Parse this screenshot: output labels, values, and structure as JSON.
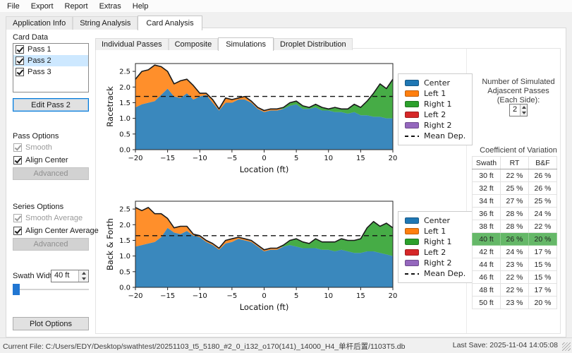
{
  "menu": {
    "items": [
      "File",
      "Export",
      "Report",
      "Extras",
      "Help"
    ]
  },
  "main_tabs": {
    "items": [
      "Application Info",
      "String Analysis",
      "Card Analysis"
    ],
    "active": "Card Analysis"
  },
  "analysis_tabs": {
    "items": [
      "Individual Passes",
      "Composite",
      "Simulations",
      "Droplet Distribution"
    ],
    "active": "Simulations"
  },
  "sidebar": {
    "card_data": {
      "label": "Card Data",
      "passes": [
        {
          "label": "Pass 1",
          "checked": true,
          "selected": false
        },
        {
          "label": "Pass 2",
          "checked": true,
          "selected": true
        },
        {
          "label": "Pass 3",
          "checked": true,
          "selected": false
        }
      ],
      "edit_button": "Edit Pass 2"
    },
    "pass_options": {
      "label": "Pass Options",
      "smooth": {
        "label": "Smooth",
        "checked": true,
        "enabled": false
      },
      "align_center": {
        "label": "Align Center",
        "checked": true,
        "enabled": true
      },
      "advanced": "Advanced"
    },
    "series_options": {
      "label": "Series Options",
      "smooth_average": {
        "label": "Smooth Average",
        "checked": true,
        "enabled": false
      },
      "align_center_average": {
        "label": "Align Center Average",
        "checked": true,
        "enabled": true
      },
      "advanced": "Advanced"
    },
    "swath_width": {
      "label": "Swath Width:",
      "value": "40 ft"
    },
    "plot_options_button": "Plot Options"
  },
  "simulation_panel": {
    "adjacent_passes_label": "Number of Simulated\nAdjascent Passes\n(Each Side):",
    "adjacent_passes_value": "2",
    "cov": {
      "title": "Coefficient of Variation",
      "headers": [
        "Swath",
        "RT",
        "B&F"
      ],
      "rows": [
        [
          "30 ft",
          "22 %",
          "26 %"
        ],
        [
          "32 ft",
          "25 %",
          "26 %"
        ],
        [
          "34 ft",
          "27 %",
          "25 %"
        ],
        [
          "36 ft",
          "28 %",
          "24 %"
        ],
        [
          "38 ft",
          "28 %",
          "22 %"
        ],
        [
          "40 ft",
          "26 %",
          "20 %"
        ],
        [
          "42 ft",
          "24 %",
          "17 %"
        ],
        [
          "44 ft",
          "23 %",
          "15 %"
        ],
        [
          "46 ft",
          "22 %",
          "15 %"
        ],
        [
          "48 ft",
          "22 %",
          "17 %"
        ],
        [
          "50 ft",
          "23 %",
          "20 %"
        ]
      ],
      "highlight_row": 5
    }
  },
  "status_bar": {
    "current_file": "Current File: C:/Users/EDY/Desktop/swathtest/20251103_t5_5180_#2_0_i132_o170(141)_14000_H4_单杆后置/1103T5.db",
    "last_save": "Last Save: 2025-11-04 14:05:08"
  },
  "colors": {
    "center": "#1f77b4",
    "left1": "#ff7f0e",
    "right1": "#2ca02c",
    "left2": "#d62728",
    "right2": "#9467bd",
    "accent": "#0078d7",
    "cov_highlight": "#65b868",
    "selection": "#cde8ff"
  },
  "chart_data": [
    {
      "type": "area",
      "stacked": true,
      "ylabel": "Racetrack",
      "xlabel": "Location (ft)",
      "xlim": [
        -20,
        20
      ],
      "ylim": [
        0,
        2.75
      ],
      "xticks": [
        -20,
        -15,
        -10,
        -5,
        0,
        5,
        10,
        15,
        20
      ],
      "yticks": [
        0,
        0.5,
        1,
        1.5,
        2,
        2.5
      ],
      "mean_dep": 1.7,
      "x": [
        -20,
        -19,
        -18,
        -17,
        -16,
        -15,
        -14,
        -13,
        -12,
        -11,
        -10,
        -9,
        -8,
        -7,
        -6,
        -5,
        -4,
        -3,
        -2,
        -1,
        0,
        1,
        2,
        3,
        4,
        5,
        6,
        7,
        8,
        9,
        10,
        11,
        12,
        13,
        14,
        15,
        16,
        17,
        18,
        19,
        20
      ],
      "series": [
        {
          "name": "Center",
          "color": "#1f77b4",
          "values": [
            1.35,
            1.45,
            1.5,
            1.55,
            1.75,
            1.95,
            1.7,
            1.65,
            1.8,
            1.6,
            1.7,
            1.75,
            1.5,
            1.25,
            1.5,
            1.5,
            1.6,
            1.6,
            1.5,
            1.3,
            1.2,
            1.25,
            1.25,
            1.3,
            1.4,
            1.45,
            1.3,
            1.3,
            1.35,
            1.25,
            1.25,
            1.2,
            1.2,
            1.15,
            1.2,
            1.1,
            1.1,
            1.05,
            1.05,
            1.0,
            1.0
          ]
        },
        {
          "name": "Left 1",
          "color": "#ff7f0e",
          "values": [
            0.9,
            1.05,
            1.05,
            1.15,
            0.9,
            0.55,
            0.4,
            0.55,
            0.45,
            0.45,
            0.1,
            0.05,
            0.1,
            0.05,
            0.15,
            0.1,
            0.05,
            0.1,
            0.05,
            0.05,
            0.05,
            0.05,
            0.05,
            0,
            0,
            0,
            0,
            0,
            0,
            0,
            0,
            0,
            0,
            0,
            0,
            0,
            0,
            0,
            0,
            0,
            0
          ]
        },
        {
          "name": "Right 1",
          "color": "#2ca02c",
          "values": [
            0,
            0,
            0,
            0,
            0,
            0,
            0,
            0,
            0,
            0,
            0,
            0,
            0,
            0,
            0,
            0,
            0,
            0,
            0,
            0,
            0,
            0,
            0,
            0.05,
            0.1,
            0.1,
            0.1,
            0.05,
            0.1,
            0.1,
            0.05,
            0.15,
            0.1,
            0.15,
            0.25,
            0.25,
            0.45,
            0.75,
            1.05,
            0.95,
            1.25
          ]
        }
      ],
      "legend": [
        {
          "label": "Center",
          "color": "#1f77b4"
        },
        {
          "label": "Left 1",
          "color": "#ff7f0e"
        },
        {
          "label": "Right 1",
          "color": "#2ca02c"
        },
        {
          "label": "Left 2",
          "color": "#d62728"
        },
        {
          "label": "Right 2",
          "color": "#9467bd"
        },
        {
          "label": "Mean Dep.",
          "dash": true
        }
      ]
    },
    {
      "type": "area",
      "stacked": true,
      "ylabel": "Back & Forth",
      "xlabel": "Location (ft)",
      "xlim": [
        -20,
        20
      ],
      "ylim": [
        0,
        2.75
      ],
      "xticks": [
        -20,
        -15,
        -10,
        -5,
        0,
        5,
        10,
        15,
        20
      ],
      "yticks": [
        0,
        0.5,
        1,
        1.5,
        2,
        2.5
      ],
      "mean_dep": 1.65,
      "x": [
        -20,
        -19,
        -18,
        -17,
        -16,
        -15,
        -14,
        -13,
        -12,
        -11,
        -10,
        -9,
        -8,
        -7,
        -6,
        -5,
        -4,
        -3,
        -2,
        -1,
        0,
        1,
        2,
        3,
        4,
        5,
        6,
        7,
        8,
        9,
        10,
        11,
        12,
        13,
        14,
        15,
        16,
        17,
        18,
        19,
        20
      ],
      "series": [
        {
          "name": "Center",
          "color": "#1f77b4",
          "values": [
            1.3,
            1.35,
            1.4,
            1.45,
            1.6,
            1.9,
            1.75,
            1.7,
            1.8,
            1.65,
            1.6,
            1.45,
            1.35,
            1.2,
            1.4,
            1.45,
            1.55,
            1.5,
            1.45,
            1.3,
            1.15,
            1.2,
            1.2,
            1.3,
            1.35,
            1.3,
            1.25,
            1.25,
            1.25,
            1.2,
            1.2,
            1.15,
            1.2,
            1.15,
            1.1,
            1.1,
            1.15,
            1.15,
            1.1,
            1.05,
            1.0
          ]
        },
        {
          "name": "Left 1",
          "color": "#ff7f0e",
          "values": [
            1.25,
            1.1,
            1.15,
            0.9,
            0.75,
            0.3,
            0.15,
            0.25,
            0.15,
            0.05,
            0.05,
            0.05,
            0.05,
            0.05,
            0.1,
            0.1,
            0.05,
            0.05,
            0.05,
            0.05,
            0.05,
            0.05,
            0.05,
            0,
            0,
            0,
            0,
            0,
            0,
            0,
            0,
            0,
            0,
            0,
            0,
            0,
            0,
            0,
            0,
            0,
            0
          ]
        },
        {
          "name": "Right 1",
          "color": "#2ca02c",
          "values": [
            0,
            0,
            0,
            0,
            0,
            0,
            0,
            0,
            0,
            0,
            0,
            0,
            0,
            0,
            0,
            0,
            0,
            0,
            0,
            0,
            0,
            0,
            0,
            0.05,
            0.15,
            0.25,
            0.2,
            0.15,
            0.3,
            0.25,
            0.25,
            0.3,
            0.35,
            0.35,
            0.4,
            0.45,
            0.75,
            0.95,
            0.85,
            1.0,
            0.9
          ]
        }
      ],
      "legend": [
        {
          "label": "Center",
          "color": "#1f77b4"
        },
        {
          "label": "Left 1",
          "color": "#ff7f0e"
        },
        {
          "label": "Right 1",
          "color": "#2ca02c"
        },
        {
          "label": "Left 2",
          "color": "#d62728"
        },
        {
          "label": "Right 2",
          "color": "#9467bd"
        },
        {
          "label": "Mean Dep.",
          "dash": true
        }
      ]
    }
  ]
}
